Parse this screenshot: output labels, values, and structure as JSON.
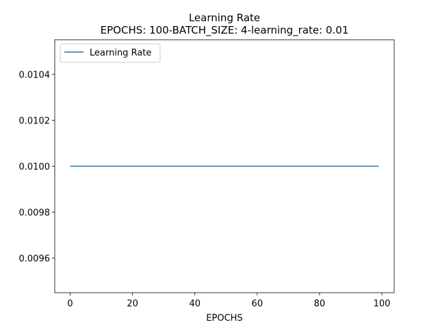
{
  "chart_data": {
    "type": "line",
    "title": "Learning Rate",
    "subtitle": "EPOCHS: 100-BATCH_SIZE: 4-learning_rate: 0.01",
    "xlabel": "EPOCHS",
    "ylabel": "",
    "xlim": [
      -4.95,
      103.95
    ],
    "ylim": [
      0.00945,
      0.01055
    ],
    "xticks": [
      0,
      20,
      40,
      60,
      80,
      100
    ],
    "xtick_labels": [
      "0",
      "20",
      "40",
      "60",
      "80",
      "100"
    ],
    "yticks": [
      0.0096,
      0.0098,
      0.01,
      0.0102,
      0.0104
    ],
    "ytick_labels": [
      "0.0096",
      "0.0098",
      "0.0100",
      "0.0102",
      "0.0104"
    ],
    "grid": false,
    "legend": "upper-left",
    "series": [
      {
        "name": "Learning Rate",
        "color": "#1f77b4",
        "x": [
          0,
          99
        ],
        "y": [
          0.01,
          0.01
        ]
      }
    ]
  }
}
